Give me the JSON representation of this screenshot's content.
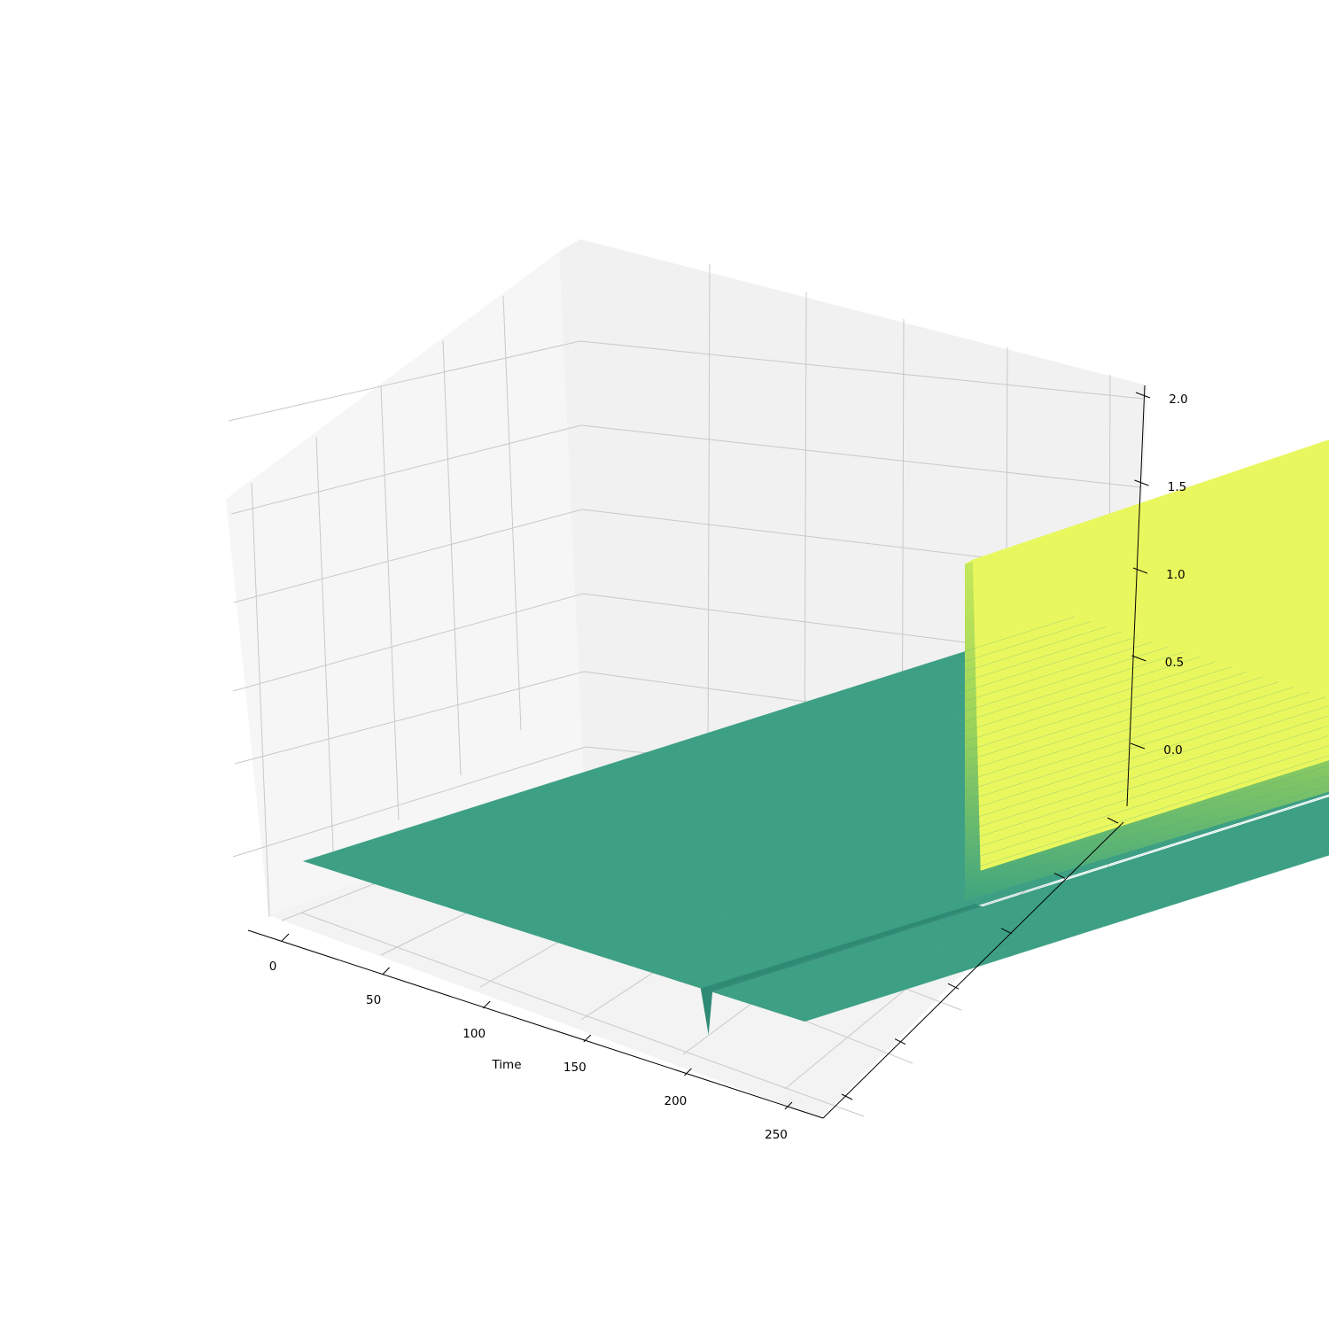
{
  "chart_data": {
    "type": "surface",
    "title": "",
    "xlabel": "Time",
    "ylabel": "",
    "zlabel": "",
    "x_ticks": [
      0,
      50,
      100,
      150,
      200,
      250
    ],
    "x_tick_labels": [
      "0",
      "50",
      "100",
      "150",
      "200",
      "250"
    ],
    "y_tick_count": 6,
    "z_ticks": [
      0.0,
      0.5,
      1.0,
      1.5,
      2.0
    ],
    "z_tick_labels": [
      "0.0",
      "0.5",
      "1.0",
      "1.5",
      "2.0"
    ],
    "xlim": [
      -8,
      262
    ],
    "zlim": [
      -0.33,
      2.1
    ],
    "grid": true,
    "colormap": "viridis",
    "surface": {
      "baseline_value": 0.0,
      "plateau_value": 1.95,
      "plateau_edge_time": 207,
      "ramp_start_time": 200,
      "plateau_slice_range": [
        0.35,
        1.0
      ],
      "trough_time": 207,
      "trough_value": -0.25
    },
    "colors": {
      "baseline": "#3d9f84",
      "plateau": "#ecfb5c",
      "pane_left": "#f6f6f6",
      "pane_back": "#f1f1f1",
      "pane_floor": "#f3f3f3",
      "grid": "#c8c8c8"
    }
  }
}
